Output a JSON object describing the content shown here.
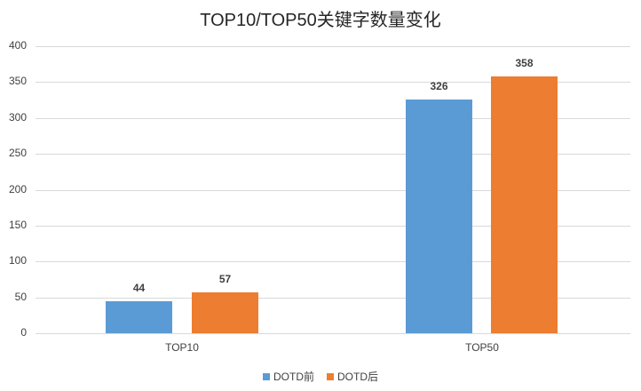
{
  "chart_data": {
    "type": "bar",
    "title": "TOP10/TOP50关键字数量变化",
    "categories": [
      "TOP10",
      "TOP50"
    ],
    "series": [
      {
        "name": "DOTD前",
        "values": [
          44,
          326
        ],
        "color": "#5B9BD5"
      },
      {
        "name": "DOTD后",
        "values": [
          57,
          358
        ],
        "color": "#ED7D31"
      }
    ],
    "xlabel": "",
    "ylabel": "",
    "ylim": [
      0,
      400
    ],
    "yticks": [
      0,
      50,
      100,
      150,
      200,
      250,
      300,
      350,
      400
    ],
    "grid": true,
    "legend_position": "bottom",
    "data_labels": true
  }
}
